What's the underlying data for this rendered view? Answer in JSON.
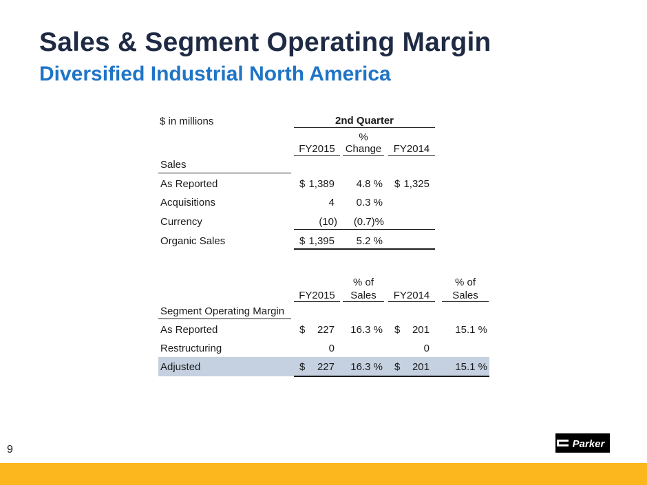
{
  "title": "Sales & Segment Operating Margin",
  "subtitle": "Diversified Industrial North America",
  "units": "$  in millions",
  "sales_table": {
    "period_header": "2nd Quarter",
    "col_fy2015": "FY2015",
    "col_change_line1": "%",
    "col_change_line2": "Change",
    "col_fy2014": "FY2014",
    "section_label": "Sales",
    "rows": [
      {
        "label": "As Reported",
        "cur1": "$",
        "v1": "1,389",
        "chg": "4.8 %",
        "cur2": "$",
        "v2": "1,325"
      },
      {
        "label": "Acquisitions",
        "cur1": "",
        "v1": "4",
        "chg": "0.3 %",
        "cur2": "",
        "v2": ""
      },
      {
        "label": "Currency",
        "cur1": "",
        "v1": "(10)",
        "chg": "(0.7)%",
        "cur2": "",
        "v2": ""
      },
      {
        "label": "Organic Sales",
        "cur1": "$",
        "v1": "1,395",
        "chg": "5.2 %",
        "cur2": "",
        "v2": ""
      }
    ]
  },
  "margin_table": {
    "col_fy2015": "FY2015",
    "col_pct1_line1": "% of",
    "col_pct1_line2": "Sales",
    "col_fy2014": "FY2014",
    "col_pct2_line1": "% of",
    "col_pct2_line2": "Sales",
    "section_label": "Segment Operating Margin",
    "rows": [
      {
        "label": "As Reported",
        "cur1": "$",
        "v1": "227",
        "p1": "16.3 %",
        "cur2": "$",
        "v2": "201",
        "p2": "15.1 %"
      },
      {
        "label": "Restructuring",
        "cur1": "",
        "v1": "0",
        "p1": "",
        "cur2": "",
        "v2": "0",
        "p2": ""
      },
      {
        "label": "Adjusted",
        "cur1": "$",
        "v1": "227",
        "p1": "16.3 %",
        "cur2": "$",
        "v2": "201",
        "p2": "15.1 %"
      }
    ]
  },
  "page_number": "9",
  "logo_text": "Parker",
  "colors": {
    "title": "#1f2a44",
    "subtitle": "#1f74c6",
    "highlight": "#c5d0e0",
    "footer": "#fcb71e"
  }
}
